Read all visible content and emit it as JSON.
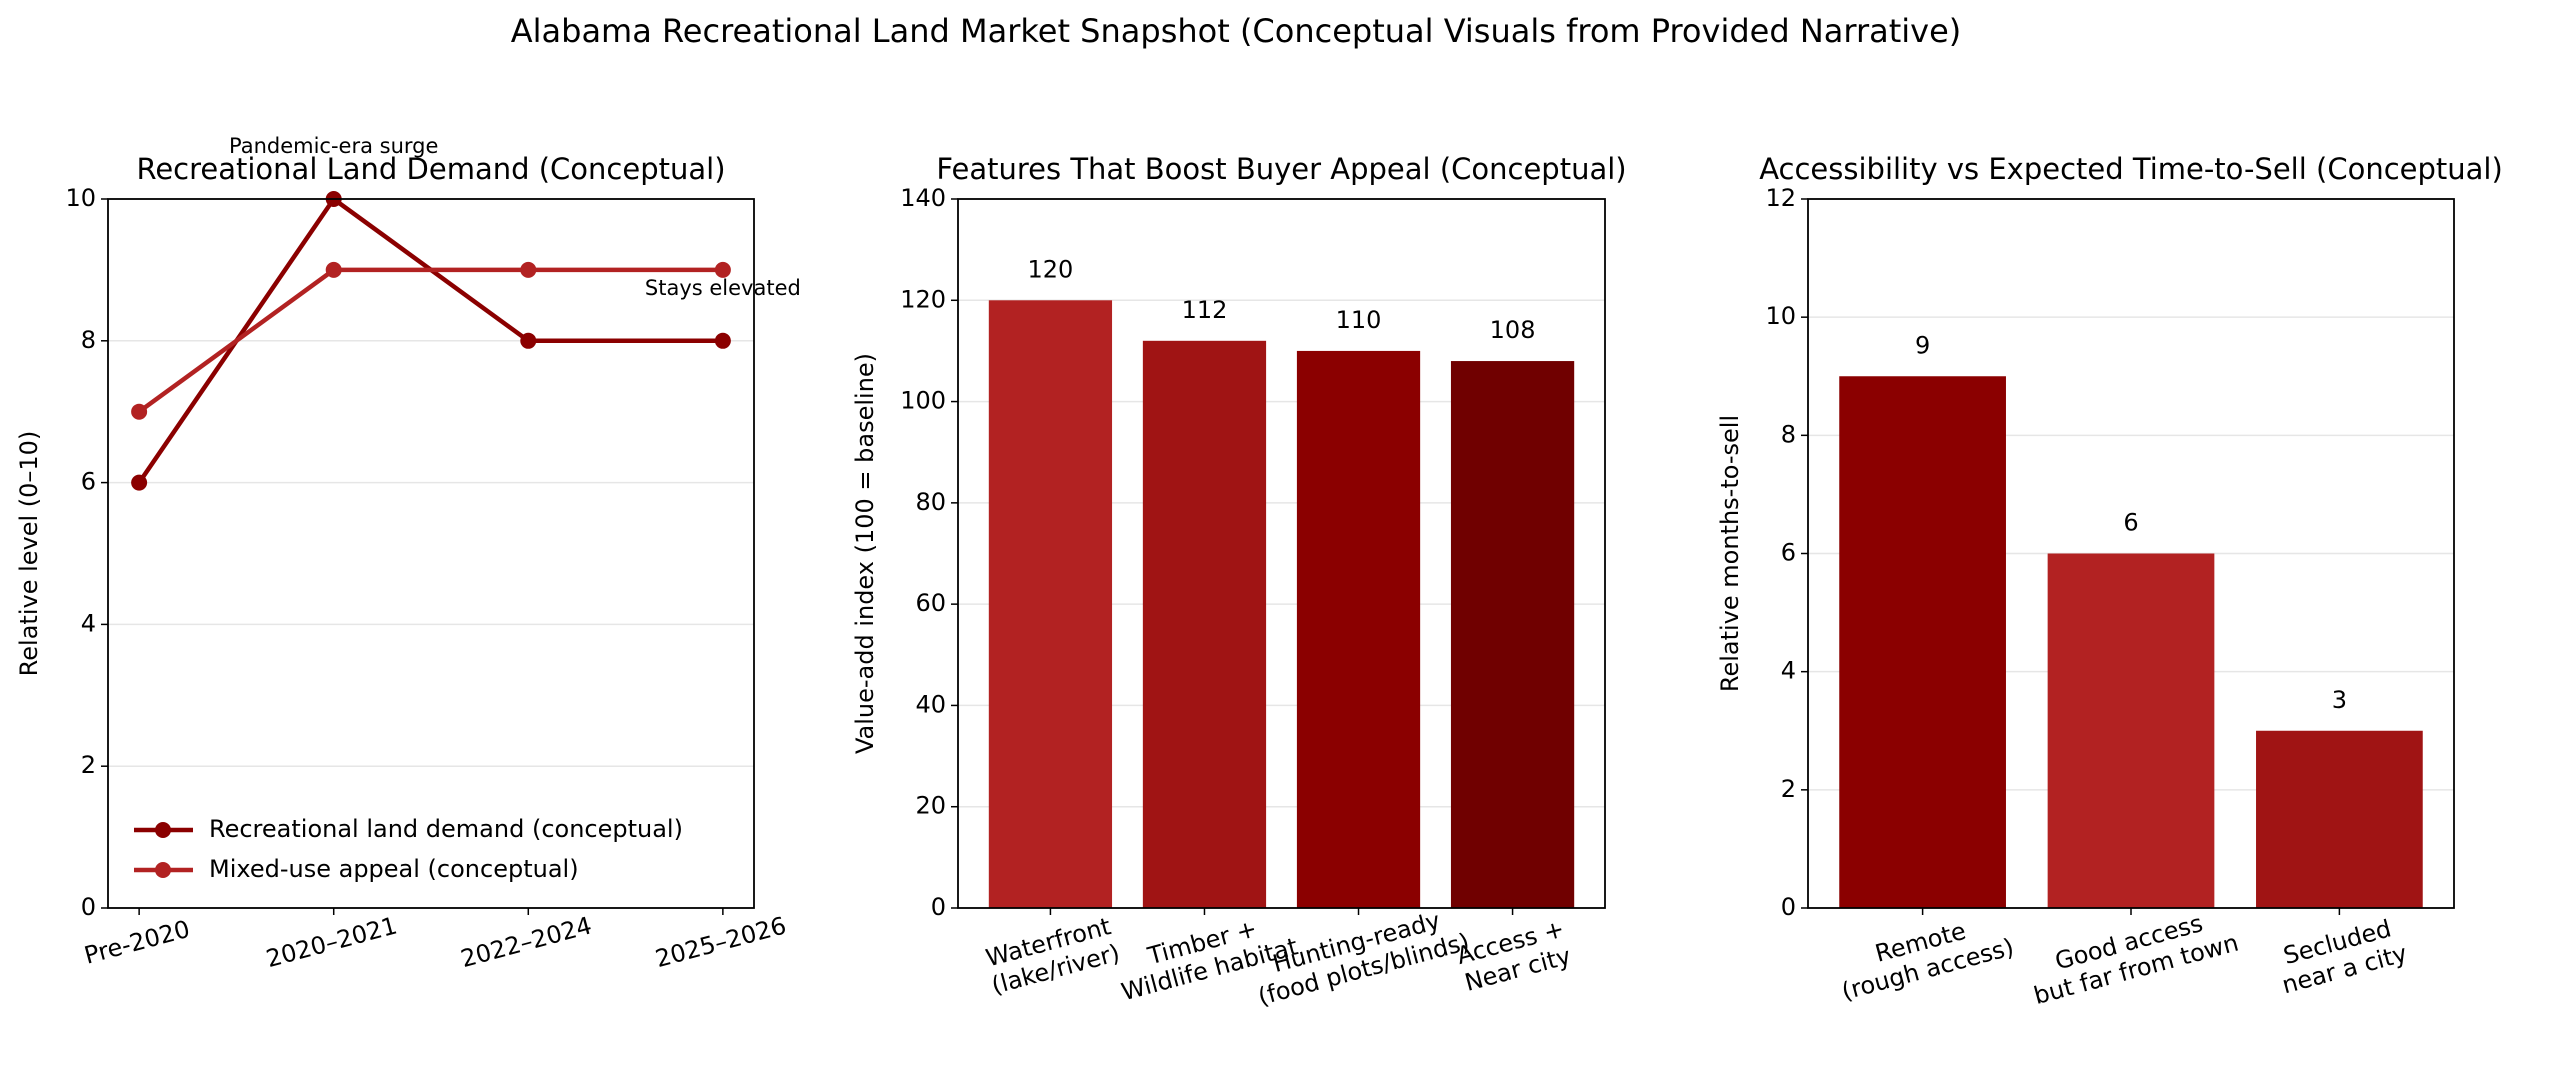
{
  "title": "Alabama Recreational Land Market Snapshot (Conceptual Visuals from Provided Narrative)",
  "chart_data": [
    {
      "type": "line",
      "title": "Recreational Land Demand (Conceptual)",
      "y_label": "Relative level (0–10)",
      "categories": [
        "Pre-2020",
        "2020–2021",
        "2022–2024",
        "2025–2026"
      ],
      "series": [
        {
          "name": "Recreational land demand (conceptual)",
          "color": "#8b0000",
          "values": [
            6,
            10,
            8,
            8
          ]
        },
        {
          "name": "Mixed-use appeal (conceptual)",
          "color": "#b22222",
          "values": [
            7,
            9,
            9,
            9
          ]
        }
      ],
      "annotations": [
        "Pandemic-era surge",
        "Stays elevated"
      ],
      "ylim": [
        0,
        10
      ],
      "yticks": [
        0,
        2,
        4,
        6,
        8,
        10
      ],
      "grid": true,
      "legend": "lower left"
    },
    {
      "type": "bar",
      "title": "Features That Boost Buyer Appeal (Conceptual)",
      "y_label": "Value-add index (100 = baseline)",
      "categories": [
        [
          "Waterfront",
          "(lake/river)"
        ],
        [
          "Timber +",
          "Wildlife habitat"
        ],
        [
          "Hunting-ready",
          "(food plots/blinds)"
        ],
        [
          "Access +",
          "Near city"
        ]
      ],
      "values": [
        120,
        112,
        110,
        108
      ],
      "colors": [
        "#b22222",
        "#a01414",
        "#8b0000",
        "#700000"
      ],
      "ylim": [
        0,
        140
      ],
      "yticks": [
        0,
        20,
        40,
        60,
        80,
        100,
        120,
        140
      ],
      "grid": true
    },
    {
      "type": "bar",
      "title": "Accessibility vs Expected Time-to-Sell (Conceptual)",
      "y_label": "Relative months-to-sell",
      "categories": [
        [
          "Remote",
          "(rough access)"
        ],
        [
          "Good access",
          "but far from town"
        ],
        [
          "Secluded",
          "near a city"
        ]
      ],
      "values": [
        9,
        6,
        3
      ],
      "colors": [
        "#8b0000",
        "#b22222",
        "#a01414"
      ],
      "ylim": [
        0,
        12
      ],
      "yticks": [
        0,
        2,
        4,
        6,
        8,
        10,
        12
      ],
      "grid": true
    }
  ]
}
